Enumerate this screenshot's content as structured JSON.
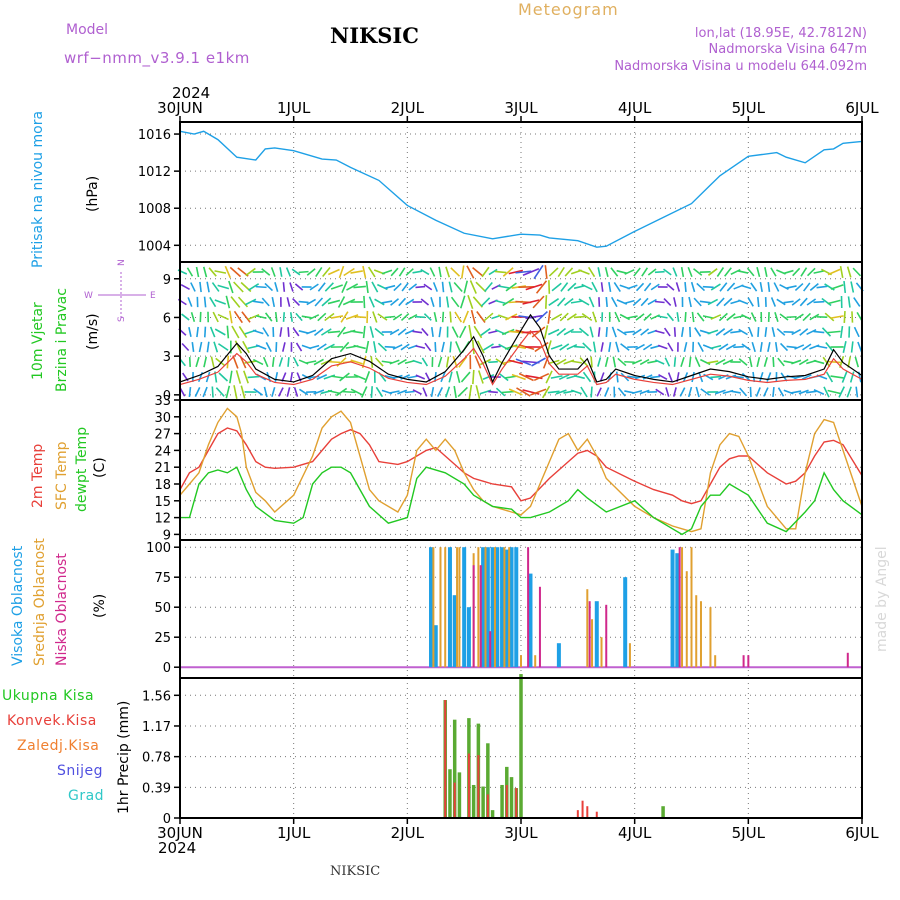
{
  "header": {
    "model_label": "Model",
    "model_name": "wrf−nmm_v3.9.1  e1km",
    "title": "NIKSIC",
    "meteogram_label": "Meteogram",
    "lonlat": "lon,lat (18.95E, 42.7812N)",
    "elevation": "Nadmorska Visina 647m",
    "model_elevation": "Nadmorska Visina u modelu 644.092m",
    "year_top": "2024",
    "year_bottom": "2024",
    "footer_station": "NIKSIC",
    "credit": "made by Angel"
  },
  "colors": {
    "pressure": "#1ea0e6",
    "t2m": "#e8403a",
    "tsfc": "#e0a030",
    "dewpt": "#22c822",
    "high_cloud": "#1ea0e6",
    "mid_cloud": "#e0a030",
    "low_cloud": "#d0288c",
    "total_precip": "#5aaa32",
    "conv_precip": "#e8403a",
    "snow": "#5050e0",
    "grad": "#30c8c8",
    "purple": "#b060d0"
  },
  "x_axis": {
    "ticks": [
      "30JUN",
      "1JUL",
      "2JUL",
      "3JUL",
      "4JUL",
      "5JUL",
      "6JUL"
    ],
    "range_hours": [
      0,
      144
    ]
  },
  "chart_data": [
    {
      "type": "line",
      "panel": "pressure",
      "ylabel": [
        "Pritisak na nivou mora",
        "(hPa)"
      ],
      "y_ticks": [
        1004,
        1008,
        1012,
        1016
      ],
      "ylim": [
        1002.2,
        1017.3
      ],
      "series": [
        {
          "name": "Pritisak na nivou mora",
          "x": [
            0,
            3,
            5,
            8,
            12,
            16,
            18,
            20,
            24,
            30,
            33,
            36,
            42,
            48,
            54,
            60,
            66,
            72,
            76,
            78,
            84,
            88,
            90,
            96,
            102,
            108,
            112,
            114,
            120,
            126,
            128,
            132,
            136,
            138,
            140,
            144
          ],
          "values": [
            1016.3,
            1016.0,
            1016.3,
            1015.4,
            1013.5,
            1013.2,
            1014.4,
            1014.5,
            1014.2,
            1013.3,
            1013.2,
            1012.4,
            1011.0,
            1008.3,
            1006.7,
            1005.3,
            1004.7,
            1005.2,
            1005.1,
            1004.8,
            1004.5,
            1003.8,
            1003.9,
            1005.5,
            1007.0,
            1008.5,
            1010.5,
            1011.5,
            1013.6,
            1014.0,
            1013.5,
            1012.9,
            1014.3,
            1014.4,
            1015.0,
            1015.2
          ]
        }
      ]
    },
    {
      "type": "line",
      "panel": "wind",
      "ylabel": [
        "10m Vjetar",
        "Brzina i Pravac",
        "(m/s)"
      ],
      "compass": {
        "w": "W",
        "e": "E",
        "n": "N",
        "s": "S"
      },
      "y_ticks": [
        0,
        3,
        6,
        9
      ],
      "ylim": [
        -0.4,
        10.3
      ],
      "series": [
        {
          "name": "Brzina",
          "x": [
            0,
            4,
            8,
            12,
            14,
            16,
            20,
            24,
            28,
            32,
            36,
            40,
            44,
            48,
            52,
            56,
            60,
            62,
            64,
            66,
            68,
            72,
            74,
            76,
            78,
            80,
            84,
            86,
            88,
            90,
            92,
            96,
            100,
            104,
            108,
            112,
            116,
            120,
            124,
            128,
            132,
            136,
            138,
            140,
            144
          ],
          "values": [
            1.0,
            1.5,
            2.2,
            4.0,
            3.2,
            2.0,
            1.2,
            1.0,
            1.5,
            2.8,
            3.2,
            2.6,
            1.6,
            1.2,
            1.0,
            1.8,
            3.5,
            4.5,
            3.0,
            1.0,
            2.5,
            5.0,
            6.2,
            5.2,
            3.0,
            2.0,
            2.0,
            2.8,
            1.0,
            1.2,
            2.0,
            1.5,
            1.2,
            1.0,
            1.5,
            2.0,
            1.8,
            1.4,
            1.2,
            1.4,
            1.5,
            2.0,
            3.5,
            2.5,
            1.5
          ]
        }
      ]
    },
    {
      "type": "line",
      "panel": "temperature",
      "ylabel": [
        "2m Temp",
        "SFC Temp",
        "dewpt Temp",
        "(C)"
      ],
      "y_ticks": [
        9,
        12,
        15,
        18,
        21,
        24,
        27,
        30,
        33
      ],
      "ylim": [
        8,
        33
      ],
      "series": [
        {
          "name": "2m Temp",
          "x": [
            0,
            2,
            4,
            6,
            8,
            10,
            12,
            14,
            16,
            18,
            20,
            24,
            28,
            32,
            34,
            36,
            38,
            40,
            42,
            46,
            48,
            50,
            52,
            54,
            56,
            58,
            60,
            62,
            64,
            66,
            70,
            72,
            74,
            78,
            82,
            84,
            86,
            88,
            90,
            96,
            100,
            104,
            106,
            108,
            110,
            112,
            114,
            116,
            118,
            120,
            124,
            128,
            130,
            132,
            134,
            136,
            138,
            140,
            144
          ],
          "values": [
            17,
            20,
            21,
            24,
            27,
            28,
            27.5,
            25,
            22,
            21,
            20.8,
            21,
            22,
            26,
            27,
            27.7,
            27,
            25,
            22,
            21.5,
            22,
            23,
            24,
            24.5,
            23,
            21.5,
            20,
            19,
            18.5,
            18,
            17.5,
            15,
            15.5,
            19,
            22,
            23.5,
            24,
            23,
            21,
            18.5,
            17,
            16,
            15,
            14.5,
            15,
            18,
            21,
            22.5,
            23,
            23,
            20,
            18,
            18.5,
            20,
            23,
            25.5,
            25.8,
            25,
            19.5
          ]
        },
        {
          "name": "SFC Temp",
          "x": [
            0,
            2,
            4,
            6,
            8,
            10,
            12,
            13,
            14,
            16,
            18,
            20,
            24,
            28,
            30,
            32,
            34,
            36,
            38,
            40,
            42,
            46,
            48,
            50,
            52,
            54,
            56,
            58,
            60,
            62,
            64,
            66,
            70,
            72,
            74,
            78,
            80,
            82,
            84,
            86,
            88,
            90,
            96,
            100,
            104,
            106,
            108,
            110,
            112,
            114,
            116,
            118,
            120,
            124,
            128,
            130,
            132,
            134,
            136,
            138,
            140,
            144
          ],
          "values": [
            16,
            18,
            20,
            25,
            29,
            31.5,
            30,
            27,
            21,
            16.5,
            15,
            13,
            16,
            23,
            28,
            30,
            31,
            29,
            23,
            17,
            15,
            13,
            16,
            24,
            26,
            24,
            26,
            24,
            20,
            17,
            15,
            14,
            13,
            12.5,
            14,
            22,
            26,
            27,
            24,
            26,
            23,
            19,
            14,
            12,
            10.5,
            10,
            9.5,
            10,
            20,
            25,
            27,
            26.5,
            23,
            14,
            10,
            10,
            20,
            27,
            29.5,
            29,
            24,
            14
          ]
        },
        {
          "name": "dewpt Temp",
          "x": [
            0,
            2,
            4,
            6,
            8,
            10,
            12,
            14,
            16,
            20,
            24,
            26,
            28,
            30,
            32,
            34,
            36,
            38,
            40,
            44,
            48,
            50,
            52,
            56,
            60,
            62,
            64,
            66,
            70,
            72,
            74,
            78,
            82,
            84,
            86,
            90,
            96,
            100,
            104,
            106,
            108,
            110,
            112,
            114,
            116,
            120,
            124,
            128,
            132,
            134,
            136,
            138,
            140,
            144
          ],
          "values": [
            12,
            12,
            18,
            20,
            20.5,
            20,
            21,
            17,
            14,
            11.5,
            11,
            12,
            18,
            20,
            21,
            21,
            20,
            17,
            14,
            11,
            12,
            19,
            21,
            20,
            18,
            16,
            15,
            14,
            13.5,
            12,
            12,
            13,
            15,
            17,
            15.5,
            13,
            15,
            12,
            10,
            9,
            10,
            14,
            16,
            16,
            18,
            16,
            11,
            9.5,
            13,
            15,
            20,
            17,
            15,
            12.5
          ]
        }
      ]
    },
    {
      "type": "bar",
      "panel": "clouds",
      "ylabel": [
        "Visoka Oblacnost",
        "Srednja Oblacnost",
        "Niska Oblacnost",
        "(%)"
      ],
      "y_ticks": [
        0,
        25,
        50,
        75,
        100
      ],
      "ylim": [
        -9,
        106
      ],
      "series": [
        {
          "name": "Visoka Oblacnost",
          "x": [
            53,
            54,
            57,
            58,
            60,
            61,
            64,
            65,
            66,
            67,
            68,
            69,
            70,
            71,
            74,
            80,
            88,
            94,
            104,
            105
          ],
          "values": [
            100,
            35,
            100,
            60,
            100,
            50,
            100,
            100,
            100,
            100,
            100,
            98,
            100,
            100,
            78,
            20,
            55,
            75,
            98,
            95
          ]
        },
        {
          "name": "Srednja Oblacnost",
          "x": [
            53.5,
            55,
            56,
            58.5,
            59,
            62,
            63,
            64.5,
            66.5,
            68.5,
            69.5,
            72,
            75,
            86,
            87,
            89,
            95,
            106,
            107,
            108,
            109,
            110,
            112,
            113
          ],
          "values": [
            100,
            100,
            100,
            100,
            100,
            95,
            100,
            100,
            100,
            100,
            100,
            10,
            10,
            65,
            40,
            25,
            20,
            100,
            80,
            100,
            60,
            55,
            50,
            10
          ]
        },
        {
          "name": "Niska Oblacnost",
          "x": [
            62,
            63.5,
            65.5,
            73.5,
            76,
            86.5,
            90,
            105.5,
            119,
            120,
            141
          ],
          "values": [
            85,
            85,
            30,
            100,
            67,
            55,
            52,
            100,
            10,
            10,
            12
          ]
        }
      ]
    },
    {
      "type": "bar",
      "panel": "precip",
      "ylabel": [
        "Ukupna Kisa",
        "Konvek.Kisa",
        "Zaledj.Kisa",
        "Snijeg",
        "Grad",
        "1hr Precip (mm)"
      ],
      "y_ticks": [
        0,
        0.39,
        0.78,
        1.17,
        1.56
      ],
      "ylim": [
        0,
        1.78
      ],
      "series": [
        {
          "name": "Ukupna Kisa",
          "x": [
            56,
            57,
            58,
            59,
            61,
            62,
            63,
            64,
            65,
            66,
            68,
            69,
            70,
            71,
            72
          ],
          "values": [
            1.5,
            0.62,
            1.25,
            0.58,
            1.27,
            0.42,
            1.2,
            0.4,
            0.95,
            0.1,
            0.42,
            0.65,
            0.52,
            0.38,
            1.83
          ]
        },
        {
          "name": "Konvek.Kisa",
          "x": [
            56,
            58,
            61,
            63,
            65,
            69,
            71,
            84,
            85,
            86,
            88
          ],
          "values": [
            1.5,
            0.45,
            0.82,
            0.8,
            0.3,
            0.42,
            0.38,
            0.1,
            0.22,
            0.15,
            0.08
          ]
        },
        {
          "name": "Zaledj.Kisa",
          "x": [],
          "values": []
        },
        {
          "name": "Snijeg",
          "x": [],
          "values": []
        },
        {
          "name": "Grad",
          "x": [
            102
          ],
          "values": [
            0.15
          ]
        }
      ]
    }
  ]
}
